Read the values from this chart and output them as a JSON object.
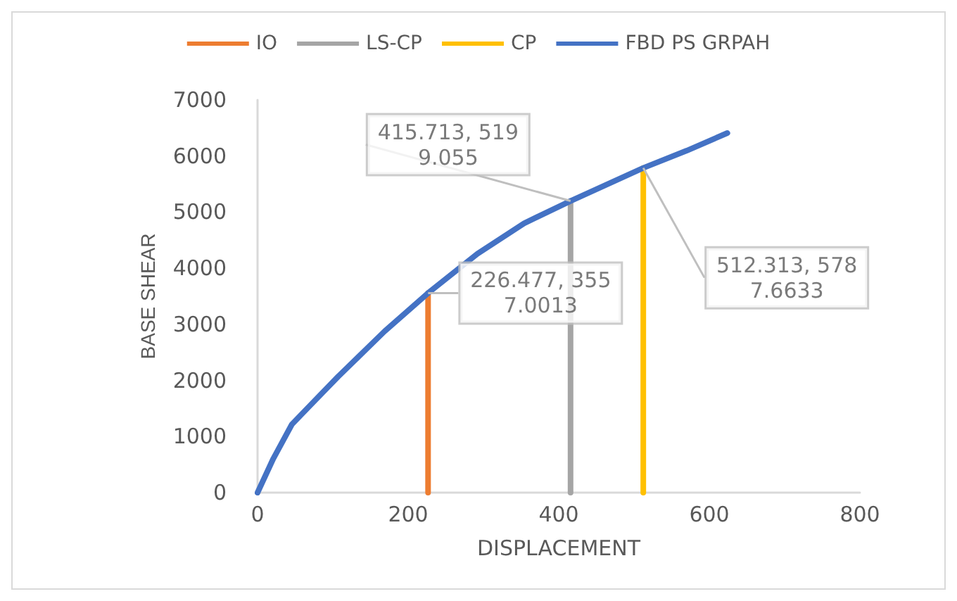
{
  "chart_data": {
    "type": "line",
    "xlabel": "DISPLACEMENT",
    "ylabel": "BASE SHEAR",
    "series": [
      {
        "name": "IO",
        "color": "#ed7d31",
        "x": [
          226.477,
          226.477
        ],
        "values": [
          0,
          3557.0013
        ]
      },
      {
        "name": "LS-CP",
        "color": "#a5a5a5",
        "x": [
          415.713,
          415.713
        ],
        "values": [
          0,
          5199.055
        ]
      },
      {
        "name": "CP",
        "color": "#ffc000",
        "x": [
          512.313,
          512.313
        ],
        "values": [
          0,
          5787.6633
        ]
      },
      {
        "name": "FBD PS GRPAH",
        "color": "#4472c4",
        "x": [
          0,
          21,
          45.6,
          76.5,
          107,
          169,
          226.477,
          292,
          354,
          415.713,
          512.313,
          570,
          624
        ],
        "values": [
          0,
          608,
          1217,
          1646,
          2068,
          2879,
          3557.0013,
          4258,
          4801,
          5199.055,
          5787.6633,
          6096,
          6410
        ]
      }
    ],
    "annotations": [
      {
        "text": "415.713, 5199.055",
        "x": 415.713,
        "y": 5199.055
      },
      {
        "text": "226.477, 3557.0013",
        "x": 226.477,
        "y": 3557.0013
      },
      {
        "text": "512.313, 5787.6633",
        "x": 512.313,
        "y": 5787.6633
      }
    ],
    "xlim": [
      0,
      800
    ],
    "xticks": [
      0,
      200,
      400,
      600,
      800
    ],
    "ylim": [
      0,
      7000
    ],
    "yticks": [
      0,
      1000,
      2000,
      3000,
      4000,
      5000,
      6000,
      7000
    ],
    "grid": false,
    "legend": "top",
    "marker": "none",
    "line_style": "solid"
  }
}
